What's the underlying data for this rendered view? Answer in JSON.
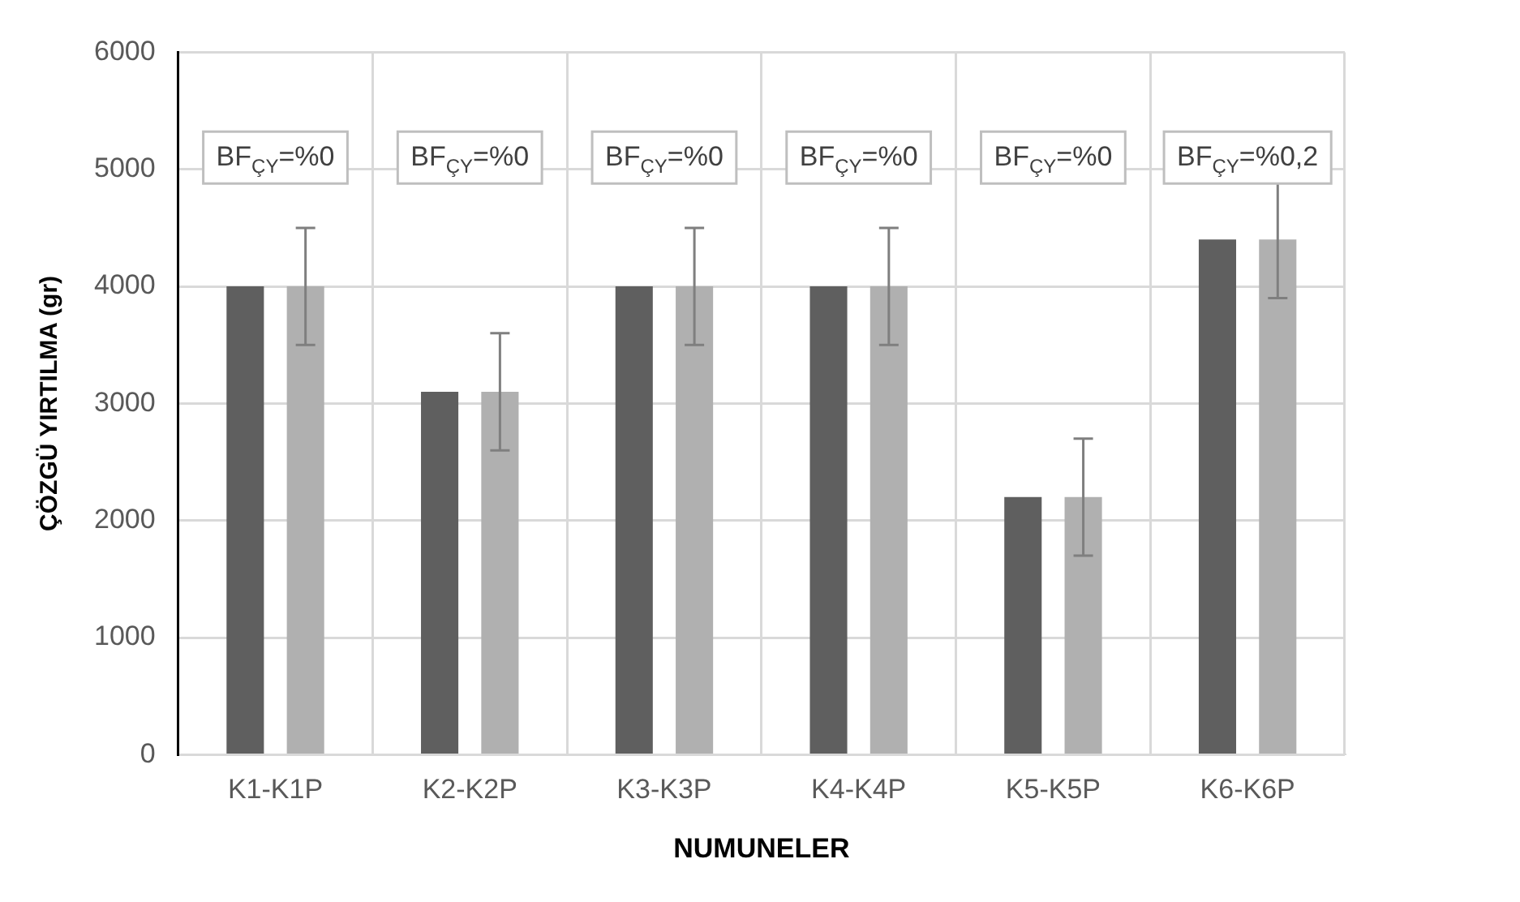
{
  "chart_data": {
    "type": "bar",
    "xlabel": "NUMUNELER",
    "ylabel": "ÇÖZGÜ YIRTILMA (gr)",
    "categories": [
      "K1-K1P",
      "K2-K2P",
      "K3-K3P",
      "K4-K4P",
      "K5-K5P",
      "K6-K6P"
    ],
    "series": [
      {
        "color": "#5f5f5f",
        "values": [
          4000,
          3100,
          4000,
          4000,
          2200,
          4400
        ]
      },
      {
        "color": "#b0b0b0",
        "values": [
          4000,
          3100,
          4000,
          4000,
          2200,
          4400
        ],
        "errors": [
          500,
          500,
          500,
          500,
          500,
          500
        ]
      }
    ],
    "ylim": [
      0,
      6000
    ],
    "yticks": [
      0,
      1000,
      2000,
      3000,
      4000,
      5000,
      6000
    ],
    "grid": true,
    "legend": false,
    "annotations": [
      "BF$_{ÇY}$=%0",
      "BF$_{ÇY}$=%0",
      "BF$_{ÇY}$=%0",
      "BF$_{ÇY}$=%0",
      "BF$_{ÇY}$=%0",
      "BF$_{ÇY}$=%0,2"
    ]
  }
}
